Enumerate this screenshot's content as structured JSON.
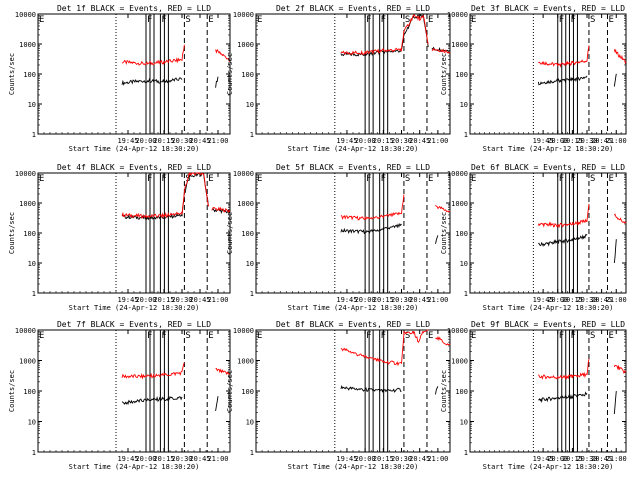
{
  "common": {
    "ylabel": "Counts/sec",
    "xlabel": "Start Time (24-Apr-12 18:30:20)",
    "yticks": [
      "1",
      "10",
      "100",
      "1000",
      "10000"
    ],
    "xticks": [
      "19:45",
      "20:00",
      "20:15",
      "20:30",
      "20:45",
      "21:00"
    ],
    "colors": {
      "events": "#000000",
      "lld": "#ff0000"
    }
  },
  "chart_data": [
    {
      "type": "line",
      "title": "Det 1f BLACK = Events, RED = LLD",
      "ylim": [
        1,
        10000
      ],
      "yscale": "log",
      "xlim": [
        "18:30",
        "21:10"
      ],
      "markers": {
        "E_left": "E",
        "F1": "F",
        "F2": "F",
        "S": "S",
        "E_right": "E"
      },
      "series": [
        {
          "name": "Events",
          "color": "#000000",
          "points": [
            [
              "19:40",
              50
            ],
            [
              "20:00",
              60
            ],
            [
              "20:15",
              55
            ],
            [
              "20:30",
              70
            ]
          ],
          "segment2": [
            [
              "20:58",
              40
            ],
            [
              "21:00",
              80
            ]
          ]
        },
        {
          "name": "LLD",
          "color": "#ff0000",
          "points": [
            [
              "19:40",
              250
            ],
            [
              "20:00",
              220
            ],
            [
              "20:15",
              250
            ],
            [
              "20:30",
              300
            ],
            [
              "20:32",
              1000
            ]
          ],
          "segment2": [
            [
              "20:58",
              600
            ],
            [
              "21:10",
              300
            ]
          ]
        }
      ]
    },
    {
      "type": "line",
      "title": "Det 2f BLACK = Events, RED = LLD",
      "ylim": [
        1,
        10000
      ],
      "yscale": "log",
      "xlim": [
        "18:30",
        "21:10"
      ],
      "markers": {
        "E_left": "E",
        "F1": "F",
        "F2": "F",
        "S": "S",
        "E_right": "E"
      },
      "series": [
        {
          "name": "Events",
          "color": "#000000",
          "points": [
            [
              "19:40",
              450
            ],
            [
              "20:00",
              450
            ],
            [
              "20:15",
              550
            ],
            [
              "20:30",
              600
            ],
            [
              "20:32",
              2000
            ],
            [
              "20:40",
              8000
            ],
            [
              "20:48",
              9000
            ],
            [
              "20:52",
              900
            ]
          ],
          "segment2": [
            [
              "20:55",
              700
            ],
            [
              "21:10",
              600
            ]
          ]
        },
        {
          "name": "LLD",
          "color": "#ff0000",
          "points": [
            [
              "19:40",
              500
            ],
            [
              "20:00",
              520
            ],
            [
              "20:15",
              600
            ],
            [
              "20:30",
              650
            ],
            [
              "20:32",
              2500
            ],
            [
              "20:40",
              9000
            ],
            [
              "20:45",
              7000
            ],
            [
              "20:48",
              9500
            ],
            [
              "20:52",
              900
            ]
          ],
          "segment2": [
            [
              "20:55",
              700
            ],
            [
              "21:10",
              550
            ]
          ]
        }
      ]
    },
    {
      "type": "line",
      "title": "Det 3f BLACK = Events, RED = LLD",
      "ylim": [
        1,
        10000
      ],
      "yscale": "log",
      "xlim": [
        "18:30",
        "21:10"
      ],
      "markers": {
        "E_left": "E",
        "F1": "F",
        "F2": "F",
        "S": "S",
        "E_right": "E"
      },
      "series": [
        {
          "name": "Events",
          "color": "#000000",
          "points": [
            [
              "19:40",
              50
            ],
            [
              "20:00",
              60
            ],
            [
              "20:15",
              65
            ],
            [
              "20:30",
              80
            ]
          ],
          "segment2": [
            [
              "20:58",
              40
            ],
            [
              "21:00",
              90
            ]
          ]
        },
        {
          "name": "LLD",
          "color": "#ff0000",
          "points": [
            [
              "19:40",
              250
            ],
            [
              "20:00",
              200
            ],
            [
              "20:15",
              230
            ],
            [
              "20:30",
              280
            ],
            [
              "20:32",
              1000
            ]
          ],
          "segment2": [
            [
              "20:58",
              600
            ],
            [
              "21:10",
              250
            ]
          ]
        }
      ]
    },
    {
      "type": "line",
      "title": "Det 4f BLACK = Events, RED = LLD",
      "ylim": [
        1,
        10000
      ],
      "yscale": "log",
      "xlim": [
        "18:30",
        "21:10"
      ],
      "markers": {
        "E_left": "E",
        "F1": "F",
        "F2": "F",
        "S": "S",
        "E_right": "E"
      },
      "series": [
        {
          "name": "Events",
          "color": "#000000",
          "points": [
            [
              "19:40",
              350
            ],
            [
              "20:00",
              320
            ],
            [
              "20:15",
              330
            ],
            [
              "20:30",
              400
            ],
            [
              "20:32",
              2000
            ],
            [
              "20:36",
              8000
            ],
            [
              "20:48",
              9000
            ],
            [
              "20:52",
              800
            ]
          ],
          "segment2": [
            [
              "20:55",
              600
            ],
            [
              "21:10",
              500
            ]
          ]
        },
        {
          "name": "LLD",
          "color": "#ff0000",
          "points": [
            [
              "19:40",
              400
            ],
            [
              "20:00",
              360
            ],
            [
              "20:15",
              380
            ],
            [
              "20:30",
              450
            ],
            [
              "20:32",
              2500
            ],
            [
              "20:36",
              9000
            ],
            [
              "20:48",
              9500
            ],
            [
              "20:52",
              800
            ]
          ],
          "segment2": [
            [
              "20:55",
              650
            ],
            [
              "21:10",
              550
            ]
          ]
        }
      ]
    },
    {
      "type": "line",
      "title": "Det 5f BLACK = Events, RED = LLD",
      "ylim": [
        1,
        10000
      ],
      "yscale": "log",
      "xlim": [
        "18:30",
        "21:10"
      ],
      "markers": {
        "E_left": "E",
        "F1": "F",
        "F2": "F",
        "S": "S",
        "E_right": "E"
      },
      "series": [
        {
          "name": "Events",
          "color": "#000000",
          "points": [
            [
              "19:40",
              120
            ],
            [
              "20:00",
              110
            ],
            [
              "20:15",
              130
            ],
            [
              "20:30",
              180
            ]
          ],
          "segment2": [
            [
              "20:58",
              40
            ],
            [
              "21:00",
              90
            ]
          ]
        },
        {
          "name": "LLD",
          "color": "#ff0000",
          "points": [
            [
              "19:40",
              350
            ],
            [
              "20:00",
              300
            ],
            [
              "20:15",
              350
            ],
            [
              "20:30",
              450
            ],
            [
              "20:32",
              2000
            ]
          ],
          "segment2": [
            [
              "20:58",
              800
            ],
            [
              "21:10",
              500
            ]
          ]
        }
      ]
    },
    {
      "type": "line",
      "title": "Det 6f BLACK = Events, RED = LLD",
      "ylim": [
        1,
        10000
      ],
      "yscale": "log",
      "xlim": [
        "18:30",
        "21:10"
      ],
      "markers": {
        "E_left": "E",
        "F1": "F",
        "F2": "F",
        "S": "S",
        "E_right": "E"
      },
      "series": [
        {
          "name": "Events",
          "color": "#000000",
          "points": [
            [
              "19:40",
              40
            ],
            [
              "20:00",
              50
            ],
            [
              "20:15",
              60
            ],
            [
              "20:30",
              80
            ]
          ],
          "segment2": [
            [
              "20:58",
              10
            ],
            [
              "21:00",
              60
            ]
          ]
        },
        {
          "name": "LLD",
          "color": "#ff0000",
          "points": [
            [
              "19:40",
              200
            ],
            [
              "20:00",
              180
            ],
            [
              "20:15",
              200
            ],
            [
              "20:30",
              250
            ],
            [
              "20:32",
              1000
            ]
          ],
          "segment2": [
            [
              "20:58",
              400
            ],
            [
              "21:10",
              200
            ]
          ]
        }
      ]
    },
    {
      "type": "line",
      "title": "Det 7f BLACK = Events, RED = LLD",
      "ylim": [
        1,
        10000
      ],
      "yscale": "log",
      "xlim": [
        "18:30",
        "21:10"
      ],
      "markers": {
        "E_left": "E",
        "F1": "F",
        "F2": "F",
        "S": "S",
        "E_right": "E"
      },
      "series": [
        {
          "name": "Events",
          "color": "#000000",
          "points": [
            [
              "19:40",
              40
            ],
            [
              "20:00",
              50
            ],
            [
              "20:15",
              55
            ],
            [
              "20:30",
              60
            ]
          ],
          "segment2": [
            [
              "20:58",
              20
            ],
            [
              "21:00",
              60
            ]
          ]
        },
        {
          "name": "LLD",
          "color": "#ff0000",
          "points": [
            [
              "19:40",
              300
            ],
            [
              "20:00",
              300
            ],
            [
              "20:15",
              330
            ],
            [
              "20:30",
              400
            ],
            [
              "20:32",
              900
            ]
          ],
          "segment2": [
            [
              "20:58",
              500
            ],
            [
              "21:10",
              350
            ]
          ]
        }
      ]
    },
    {
      "type": "line",
      "title": "Det 8f BLACK = Events, RED = LLD",
      "ylim": [
        1,
        10000
      ],
      "yscale": "log",
      "xlim": [
        "18:30",
        "21:10"
      ],
      "markers": {
        "E_left": "E",
        "F1": "F",
        "F2": "F",
        "S": "S",
        "E_right": "E"
      },
      "series": [
        {
          "name": "Events",
          "color": "#000000",
          "points": [
            [
              "19:40",
              130
            ],
            [
              "20:00",
              110
            ],
            [
              "20:15",
              100
            ],
            [
              "20:30",
              110
            ]
          ],
          "segment2": [
            [
              "20:58",
              80
            ],
            [
              "21:00",
              150
            ]
          ]
        },
        {
          "name": "LLD",
          "color": "#ff0000",
          "points": [
            [
              "19:40",
              2500
            ],
            [
              "20:00",
              1300
            ],
            [
              "20:15",
              900
            ],
            [
              "20:30",
              800
            ],
            [
              "20:32",
              8000
            ],
            [
              "20:40",
              9000
            ],
            [
              "20:44",
              4000
            ],
            [
              "20:48",
              9000
            ],
            [
              "20:52",
              9500
            ]
          ],
          "segment2": [
            [
              "20:58",
              6000
            ],
            [
              "21:10",
              3000
            ]
          ]
        }
      ]
    },
    {
      "type": "line",
      "title": "Det 9f BLACK = Events, RED = LLD",
      "ylim": [
        1,
        10000
      ],
      "yscale": "log",
      "xlim": [
        "18:30",
        "21:10"
      ],
      "markers": {
        "E_left": "E",
        "F1": "F",
        "F2": "F",
        "S": "S",
        "E_right": "E"
      },
      "series": [
        {
          "name": "Events",
          "color": "#000000",
          "points": [
            [
              "19:40",
              50
            ],
            [
              "20:00",
              60
            ],
            [
              "20:15",
              65
            ],
            [
              "20:30",
              80
            ]
          ],
          "segment2": [
            [
              "20:58",
              20
            ],
            [
              "21:00",
              90
            ]
          ]
        },
        {
          "name": "LLD",
          "color": "#ff0000",
          "points": [
            [
              "19:40",
              300
            ],
            [
              "20:00",
              280
            ],
            [
              "20:15",
              300
            ],
            [
              "20:30",
              350
            ],
            [
              "20:32",
              1200
            ]
          ],
          "segment2": [
            [
              "20:58",
              700
            ],
            [
              "21:10",
              400
            ]
          ]
        }
      ]
    }
  ]
}
